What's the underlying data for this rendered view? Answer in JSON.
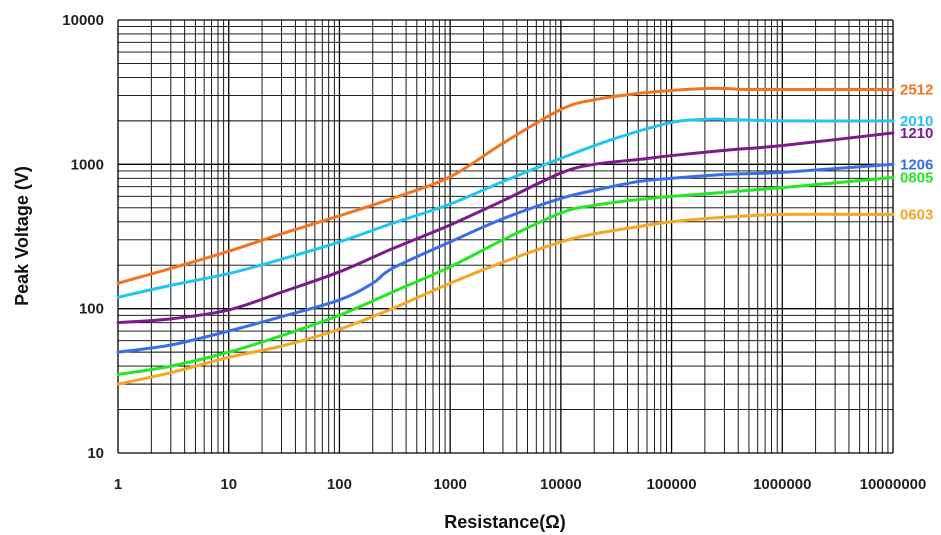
{
  "chart_data": {
    "type": "line",
    "title": "",
    "xlabel": "Resistance(Ω)",
    "ylabel": "Peak Voltage (V)",
    "x_scale": "log",
    "y_scale": "log",
    "xlim": [
      1,
      10000000
    ],
    "ylim": [
      10,
      10000
    ],
    "grid": true,
    "x_ticks": [
      "1",
      "10",
      "100",
      "1000",
      "10000",
      "100000",
      "1000000",
      "10000000"
    ],
    "y_ticks": [
      "10",
      "100",
      "1000",
      "10000"
    ],
    "series": [
      {
        "name": "2512",
        "color": "#f47321",
        "x": [
          1,
          3,
          10,
          30,
          100,
          300,
          1000,
          3000,
          10000,
          20000,
          50000,
          100000,
          200000,
          300000,
          500000,
          1000000,
          10000000
        ],
        "y": [
          150,
          190,
          250,
          330,
          440,
          580,
          820,
          1400,
          2400,
          2800,
          3100,
          3250,
          3350,
          3350,
          3300,
          3300,
          3300
        ]
      },
      {
        "name": "2010",
        "color": "#22c4f2",
        "x": [
          1,
          3,
          10,
          30,
          100,
          300,
          1000,
          3000,
          10000,
          30000,
          100000,
          200000,
          300000,
          1000000,
          10000000
        ],
        "y": [
          120,
          145,
          175,
          220,
          290,
          390,
          530,
          760,
          1100,
          1500,
          1950,
          2050,
          2050,
          2000,
          2000
        ]
      },
      {
        "name": "1210",
        "color": "#7c1a8e",
        "x": [
          1,
          3,
          10,
          30,
          100,
          300,
          1000,
          3000,
          10000,
          20000,
          50000,
          100000,
          300000,
          1000000,
          10000000
        ],
        "y": [
          80,
          85,
          98,
          130,
          180,
          260,
          380,
          560,
          870,
          1000,
          1080,
          1150,
          1250,
          1350,
          1650
        ]
      },
      {
        "name": "1206",
        "color": "#3a6ee8",
        "x": [
          1,
          3,
          10,
          30,
          100,
          200,
          300,
          1000,
          3000,
          10000,
          20000,
          50000,
          100000,
          300000,
          1000000,
          10000000
        ],
        "y": [
          50,
          56,
          70,
          88,
          115,
          150,
          190,
          290,
          420,
          580,
          660,
          760,
          800,
          850,
          880,
          1000
        ]
      },
      {
        "name": "0805",
        "color": "#22e822",
        "x": [
          1,
          3,
          10,
          30,
          100,
          300,
          1000,
          3000,
          10000,
          20000,
          50000,
          100000,
          300000,
          1000000,
          10000000
        ],
        "y": [
          35,
          40,
          50,
          65,
          90,
          130,
          195,
          300,
          460,
          520,
          570,
          600,
          640,
          690,
          810
        ]
      },
      {
        "name": "0603",
        "color": "#f5a623",
        "x": [
          1,
          3,
          10,
          30,
          100,
          300,
          1000,
          3000,
          10000,
          20000,
          50000,
          100000,
          300000,
          1000000,
          10000000
        ],
        "y": [
          30,
          36,
          46,
          55,
          72,
          100,
          150,
          210,
          290,
          330,
          370,
          400,
          430,
          450,
          450
        ]
      }
    ]
  }
}
